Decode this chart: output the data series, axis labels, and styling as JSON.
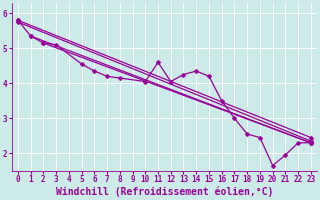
{
  "xlabel": "Windchill (Refroidissement éolien,°C)",
  "bg_color": "#cceae7",
  "line_color": "#990099",
  "grid_color": "#ffffff",
  "xlim": [
    -0.5,
    23.5
  ],
  "ylim": [
    1.5,
    6.3
  ],
  "yticks": [
    2,
    3,
    4,
    5,
    6
  ],
  "xticks": [
    0,
    1,
    2,
    3,
    4,
    5,
    6,
    7,
    8,
    9,
    10,
    11,
    12,
    13,
    14,
    15,
    16,
    17,
    18,
    19,
    20,
    21,
    22,
    23
  ],
  "lines": [
    {
      "x": [
        0,
        1,
        2,
        3,
        5,
        6,
        7,
        8,
        10,
        11,
        12,
        13,
        14,
        15,
        16,
        17,
        18,
        19,
        20,
        21,
        22,
        23
      ],
      "y": [
        5.8,
        5.35,
        5.15,
        5.1,
        4.55,
        4.35,
        4.2,
        4.15,
        4.05,
        4.6,
        4.05,
        4.25,
        4.35,
        4.2,
        3.5,
        3.0,
        2.55,
        2.45,
        1.65,
        1.95,
        2.3,
        2.3
      ]
    },
    {
      "x": [
        0,
        23
      ],
      "y": [
        5.75,
        2.35
      ]
    },
    {
      "x": [
        0,
        23
      ],
      "y": [
        5.8,
        2.45
      ]
    },
    {
      "x": [
        1,
        23
      ],
      "y": [
        5.35,
        2.3
      ]
    },
    {
      "x": [
        2,
        23
      ],
      "y": [
        5.15,
        2.3
      ]
    }
  ],
  "marker": "D",
  "markersize": 2.5,
  "linewidth": 0.9,
  "tick_fontsize": 5.5,
  "xlabel_fontsize": 7.0
}
